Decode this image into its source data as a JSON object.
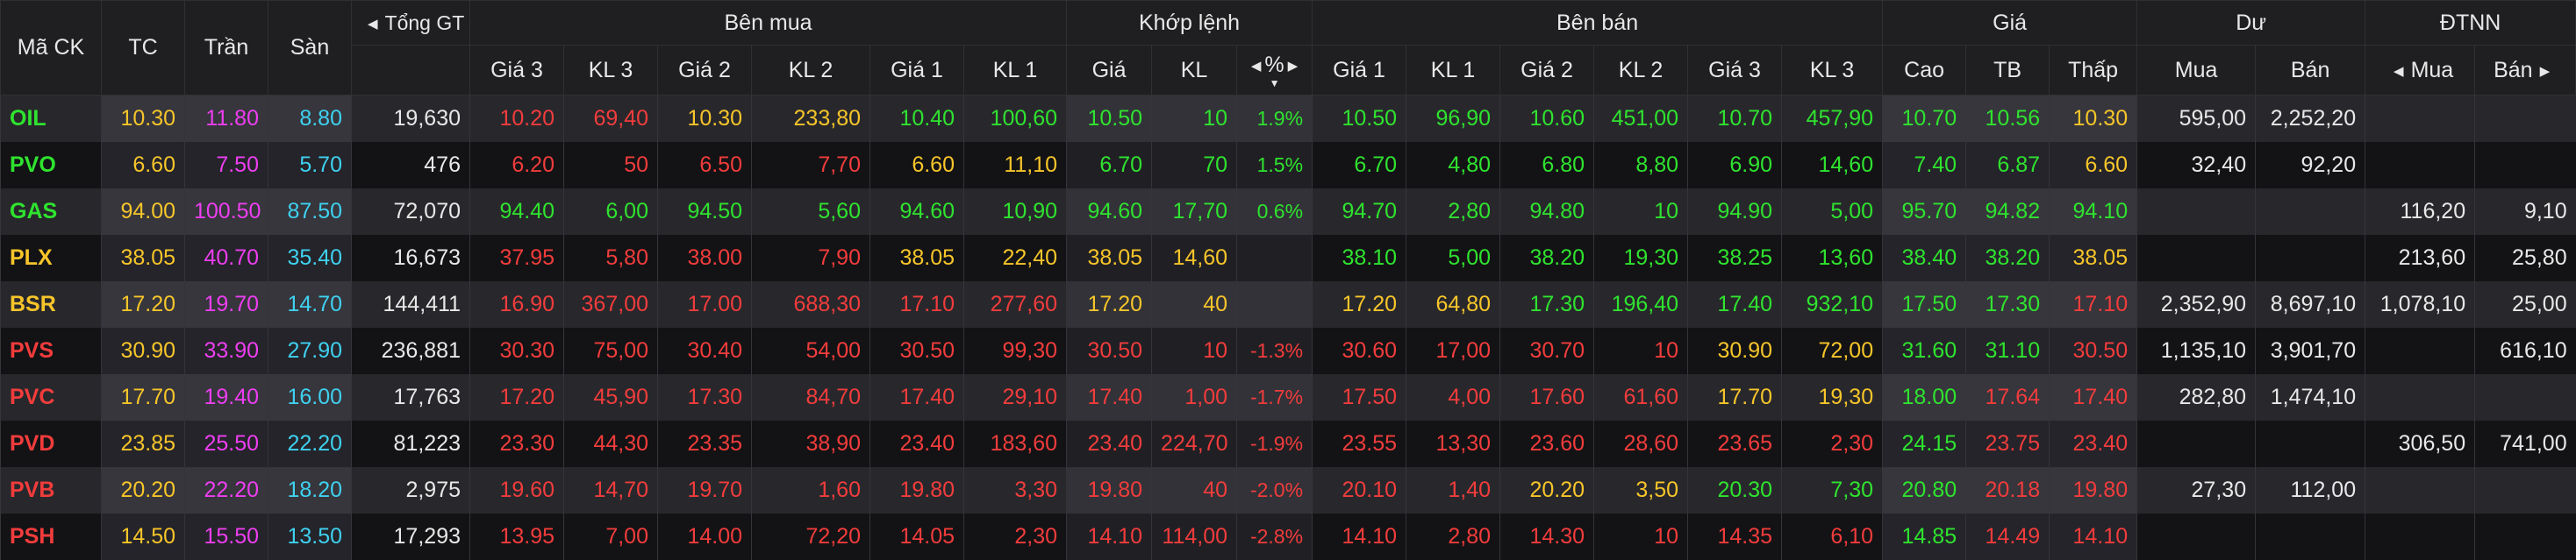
{
  "headers": {
    "ma_ck": "Mã CK",
    "tc": "TC",
    "tran": "Trần",
    "san": "Sàn",
    "tong_gt": "Tổng GT",
    "ben_mua": "Bên mua",
    "khop_lenh": "Khớp lệnh",
    "ben_ban": "Bên bán",
    "gia": "Giá",
    "du": "Dư",
    "dtnn": "ĐTNN",
    "buy_cols": [
      "Giá 3",
      "KL 3",
      "Giá 2",
      "KL 2",
      "Giá 1",
      "KL 1"
    ],
    "match_cols": [
      "Giá",
      "KL",
      "%"
    ],
    "sell_cols": [
      "Giá 1",
      "KL 1",
      "Giá 2",
      "KL 2",
      "Giá 3",
      "KL 3"
    ],
    "price_cols": [
      "Cao",
      "TB",
      "Thấp"
    ],
    "du_cols": [
      "Mua",
      "Bán"
    ],
    "dtnn_cols": [
      "Mua",
      "Bán"
    ]
  },
  "icons": {
    "left_arrow": "caret-left-icon",
    "right_arrow": "caret-right-icon",
    "sort_down": "sort-down-icon"
  },
  "colors": {
    "up": "#2fe32f",
    "down": "#f23c3c",
    "ref": "#f7c52a",
    "ceiling": "#ee3ef0",
    "floor": "#3fd1f0",
    "neutral": "#e8e8e8"
  },
  "rows": [
    {
      "c": "g",
      "v": [
        "OIL",
        "10.30",
        "11.80",
        "8.80",
        "19,630",
        "10.20",
        "69,40",
        "10.30",
        "233,80",
        "10.40",
        "100,60",
        "10.50",
        "10",
        "1.9%",
        "10.50",
        "96,90",
        "10.60",
        "451,00",
        "10.70",
        "457,90",
        "10.70",
        "10.56",
        "10.30",
        "595,00",
        "2,252,20",
        "",
        ""
      ],
      "k": [
        "g",
        "y",
        "p",
        "c",
        "w",
        "r",
        "r",
        "y",
        "y",
        "g",
        "g",
        "g",
        "g",
        "g",
        "g",
        "g",
        "g",
        "g",
        "g",
        "g",
        "g",
        "g",
        "y",
        "w",
        "w",
        "w",
        "w"
      ]
    },
    {
      "c": "g",
      "v": [
        "PVO",
        "6.60",
        "7.50",
        "5.70",
        "476",
        "6.20",
        "50",
        "6.50",
        "7,70",
        "6.60",
        "11,10",
        "6.70",
        "70",
        "1.5%",
        "6.70",
        "4,80",
        "6.80",
        "8,80",
        "6.90",
        "14,60",
        "7.40",
        "6.87",
        "6.60",
        "32,40",
        "92,20",
        "",
        ""
      ],
      "k": [
        "g",
        "y",
        "p",
        "c",
        "w",
        "r",
        "r",
        "r",
        "r",
        "y",
        "y",
        "g",
        "g",
        "g",
        "g",
        "g",
        "g",
        "g",
        "g",
        "g",
        "g",
        "g",
        "y",
        "w",
        "w",
        "w",
        "w"
      ]
    },
    {
      "c": "g",
      "v": [
        "GAS",
        "94.00",
        "100.50",
        "87.50",
        "72,070",
        "94.40",
        "6,00",
        "94.50",
        "5,60",
        "94.60",
        "10,90",
        "94.60",
        "17,70",
        "0.6%",
        "94.70",
        "2,80",
        "94.80",
        "10",
        "94.90",
        "5,00",
        "95.70",
        "94.82",
        "94.10",
        "",
        "",
        "116,20",
        "9,10"
      ],
      "k": [
        "g",
        "y",
        "p",
        "c",
        "w",
        "g",
        "g",
        "g",
        "g",
        "g",
        "g",
        "g",
        "g",
        "g",
        "g",
        "g",
        "g",
        "g",
        "g",
        "g",
        "g",
        "g",
        "g",
        "w",
        "w",
        "w",
        "w"
      ]
    },
    {
      "c": "y",
      "v": [
        "PLX",
        "38.05",
        "40.70",
        "35.40",
        "16,673",
        "37.95",
        "5,80",
        "38.00",
        "7,90",
        "38.05",
        "22,40",
        "38.05",
        "14,60",
        "",
        "38.10",
        "5,00",
        "38.20",
        "19,30",
        "38.25",
        "13,60",
        "38.40",
        "38.20",
        "38.05",
        "",
        "",
        "213,60",
        "25,80"
      ],
      "k": [
        "y",
        "y",
        "p",
        "c",
        "w",
        "r",
        "r",
        "r",
        "r",
        "y",
        "y",
        "y",
        "y",
        "y",
        "g",
        "g",
        "g",
        "g",
        "g",
        "g",
        "g",
        "g",
        "y",
        "w",
        "w",
        "w",
        "w"
      ]
    },
    {
      "c": "y",
      "v": [
        "BSR",
        "17.20",
        "19.70",
        "14.70",
        "144,411",
        "16.90",
        "367,00",
        "17.00",
        "688,30",
        "17.10",
        "277,60",
        "17.20",
        "40",
        "",
        "17.20",
        "64,80",
        "17.30",
        "196,40",
        "17.40",
        "932,10",
        "17.50",
        "17.30",
        "17.10",
        "2,352,90",
        "8,697,10",
        "1,078,10",
        "25,00"
      ],
      "k": [
        "y",
        "y",
        "p",
        "c",
        "w",
        "r",
        "r",
        "r",
        "r",
        "r",
        "r",
        "y",
        "y",
        "y",
        "y",
        "y",
        "g",
        "g",
        "g",
        "g",
        "g",
        "g",
        "r",
        "w",
        "w",
        "w",
        "w"
      ]
    },
    {
      "c": "r",
      "v": [
        "PVS",
        "30.90",
        "33.90",
        "27.90",
        "236,881",
        "30.30",
        "75,00",
        "30.40",
        "54,00",
        "30.50",
        "99,30",
        "30.50",
        "10",
        "-1.3%",
        "30.60",
        "17,00",
        "30.70",
        "10",
        "30.90",
        "72,00",
        "31.60",
        "31.10",
        "30.50",
        "1,135,10",
        "3,901,70",
        "",
        "616,10"
      ],
      "k": [
        "r",
        "y",
        "p",
        "c",
        "w",
        "r",
        "r",
        "r",
        "r",
        "r",
        "r",
        "r",
        "r",
        "r",
        "r",
        "r",
        "r",
        "r",
        "y",
        "y",
        "g",
        "g",
        "r",
        "w",
        "w",
        "w",
        "w"
      ]
    },
    {
      "c": "r",
      "v": [
        "PVC",
        "17.70",
        "19.40",
        "16.00",
        "17,763",
        "17.20",
        "45,90",
        "17.30",
        "84,70",
        "17.40",
        "29,10",
        "17.40",
        "1,00",
        "-1.7%",
        "17.50",
        "4,00",
        "17.60",
        "61,60",
        "17.70",
        "19,30",
        "18.00",
        "17.64",
        "17.40",
        "282,80",
        "1,474,10",
        "",
        ""
      ],
      "k": [
        "r",
        "y",
        "p",
        "c",
        "w",
        "r",
        "r",
        "r",
        "r",
        "r",
        "r",
        "r",
        "r",
        "r",
        "r",
        "r",
        "r",
        "r",
        "y",
        "y",
        "g",
        "r",
        "r",
        "w",
        "w",
        "w",
        "w"
      ]
    },
    {
      "c": "r",
      "v": [
        "PVD",
        "23.85",
        "25.50",
        "22.20",
        "81,223",
        "23.30",
        "44,30",
        "23.35",
        "38,90",
        "23.40",
        "183,60",
        "23.40",
        "224,70",
        "-1.9%",
        "23.55",
        "13,30",
        "23.60",
        "28,60",
        "23.65",
        "2,30",
        "24.15",
        "23.75",
        "23.40",
        "",
        "",
        "306,50",
        "741,00"
      ],
      "k": [
        "r",
        "y",
        "p",
        "c",
        "w",
        "r",
        "r",
        "r",
        "r",
        "r",
        "r",
        "r",
        "r",
        "r",
        "r",
        "r",
        "r",
        "r",
        "r",
        "r",
        "g",
        "r",
        "r",
        "w",
        "w",
        "w",
        "w"
      ]
    },
    {
      "c": "r",
      "v": [
        "PVB",
        "20.20",
        "22.20",
        "18.20",
        "2,975",
        "19.60",
        "14,70",
        "19.70",
        "1,60",
        "19.80",
        "3,30",
        "19.80",
        "40",
        "-2.0%",
        "20.10",
        "1,40",
        "20.20",
        "3,50",
        "20.30",
        "7,30",
        "20.80",
        "20.18",
        "19.80",
        "27,30",
        "112,00",
        "",
        ""
      ],
      "k": [
        "r",
        "y",
        "p",
        "c",
        "w",
        "r",
        "r",
        "r",
        "r",
        "r",
        "r",
        "r",
        "r",
        "r",
        "r",
        "r",
        "y",
        "y",
        "g",
        "g",
        "g",
        "r",
        "r",
        "w",
        "w",
        "w",
        "w"
      ]
    },
    {
      "c": "r",
      "v": [
        "PSH",
        "14.50",
        "15.50",
        "13.50",
        "17,293",
        "13.95",
        "7,00",
        "14.00",
        "72,20",
        "14.05",
        "2,30",
        "14.10",
        "114,00",
        "-2.8%",
        "14.10",
        "2,80",
        "14.30",
        "10",
        "14.35",
        "6,10",
        "14.85",
        "14.49",
        "14.10",
        "",
        "",
        "",
        ""
      ],
      "k": [
        "r",
        "y",
        "p",
        "c",
        "w",
        "r",
        "r",
        "r",
        "r",
        "r",
        "r",
        "r",
        "r",
        "r",
        "r",
        "r",
        "r",
        "r",
        "r",
        "r",
        "g",
        "r",
        "r",
        "w",
        "w",
        "w",
        "w"
      ]
    }
  ]
}
